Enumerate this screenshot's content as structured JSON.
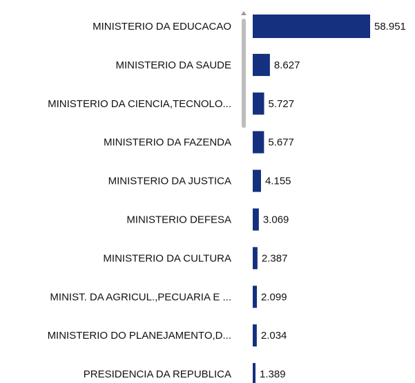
{
  "chart_data": {
    "type": "bar",
    "orientation": "horizontal",
    "color": "#14307f",
    "categories": [
      "MINISTERIO DA EDUCACAO",
      "MINISTERIO DA SAUDE",
      "MINISTERIO DA CIENCIA,TECNOLO...",
      "MINISTERIO DA FAZENDA",
      "MINISTERIO DA JUSTICA",
      "MINISTERIO DEFESA",
      "MINISTERIO DA CULTURA",
      "MINIST. DA AGRICUL.,PECUARIA E ...",
      "MINISTERIO DO PLANEJAMENTO,D...",
      "PRESIDENCIA DA REPUBLICA"
    ],
    "values": [
      58.951,
      8.627,
      5.727,
      5.677,
      4.155,
      3.069,
      2.387,
      2.099,
      2.034,
      1.389
    ]
  }
}
